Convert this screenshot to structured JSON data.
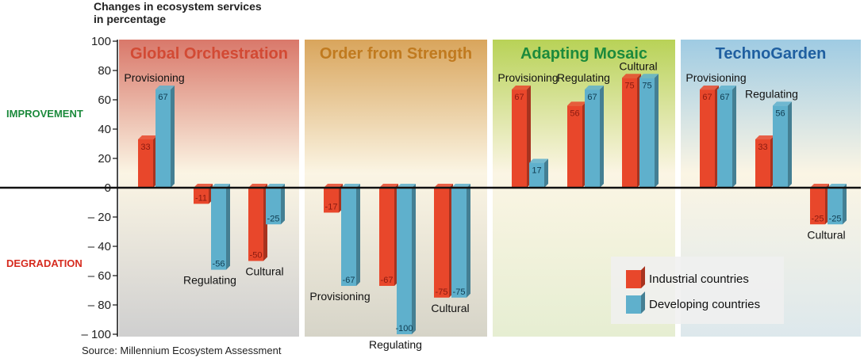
{
  "chart_data": {
    "type": "bar",
    "title": "Changes in ecosystem services in percentage",
    "title_lines": [
      "Changes in ecosystem services",
      "in percentage"
    ],
    "ylim": [
      -100,
      100
    ],
    "yticks": [
      100,
      80,
      60,
      40,
      20,
      0,
      -20,
      -40,
      -60,
      -80,
      -100
    ],
    "ytick_labels": [
      "100",
      "80",
      "60",
      "40",
      "20",
      "0",
      "– 20",
      "– 40",
      "– 60",
      "– 80",
      "– 100"
    ],
    "improvement_label": "IMPROVEMENT",
    "degradation_label": "DEGRADATION",
    "series": [
      {
        "name": "Industrial countries",
        "color": "#e8472b"
      },
      {
        "name": "Developing countries",
        "color": "#5fb0cc"
      }
    ],
    "panels": [
      {
        "title": "Global Orchestration",
        "title_color": "#d24a34",
        "bg_top": "#d9786a",
        "bg_bottom": "#cfcfcf",
        "groups": [
          {
            "label": "Provisioning",
            "values": [
              33,
              67
            ]
          },
          {
            "label": "Regulating",
            "values": [
              -11,
              -56
            ]
          },
          {
            "label": "Cultural",
            "values": [
              -50,
              -25
            ]
          }
        ]
      },
      {
        "title": "Order from Strength",
        "title_color": "#c07a1f",
        "bg_top": "#d9a55c",
        "bg_bottom": "#d6d4c8",
        "groups": [
          {
            "label": "Provisioning",
            "values": [
              -17,
              -67
            ]
          },
          {
            "label": "Regulating",
            "values": [
              -67,
              -100
            ]
          },
          {
            "label": "Cultural",
            "values": [
              -75,
              -75
            ]
          }
        ]
      },
      {
        "title": "Adapting Mosaic",
        "title_color": "#1c8a3c",
        "bg_top": "#b8d257",
        "bg_bottom": "#e6eed2",
        "groups": [
          {
            "label": "Provisioning",
            "values": [
              67,
              17
            ]
          },
          {
            "label": "Regulating",
            "values": [
              56,
              67
            ]
          },
          {
            "label": "Cultural",
            "values": [
              75,
              75
            ]
          }
        ]
      },
      {
        "title": "TechnoGarden",
        "title_color": "#1f5fa0",
        "bg_top": "#9fcbe3",
        "bg_bottom": "#dde8ec",
        "groups": [
          {
            "label": "Provisioning",
            "values": [
              67,
              67
            ]
          },
          {
            "label": "Regulating",
            "values": [
              33,
              56
            ]
          },
          {
            "label": "Cultural",
            "values": [
              -25,
              -25
            ]
          }
        ]
      }
    ],
    "legend_position": "bottom-right",
    "source": "Source: Millennium Ecosystem Assessment"
  }
}
